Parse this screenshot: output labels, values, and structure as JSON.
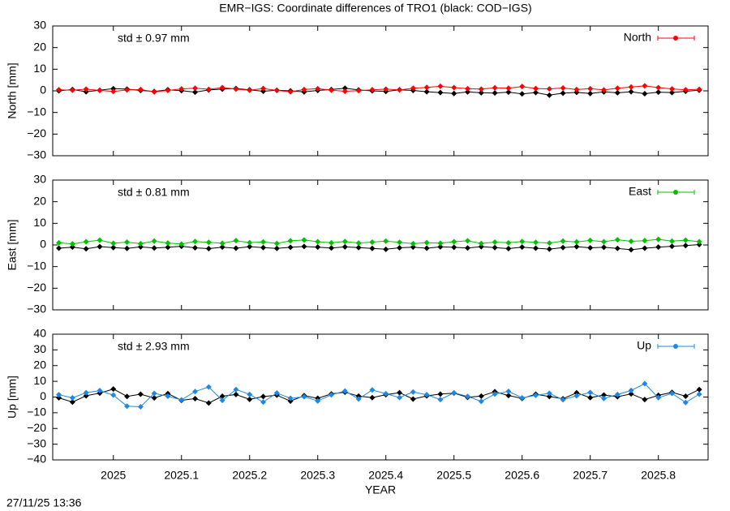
{
  "title": "EMR−IGS: Coordinate differences of TRO1 (black: COD−IGS)",
  "timestamp": "27/11/25 13:36",
  "chart_data": [
    {
      "type": "line",
      "ylabel": "North [mm]",
      "annotation": "std ± 0.97 mm",
      "legend": "top-right",
      "x": [
        2024.92,
        2024.94,
        2024.96,
        2024.98,
        2025,
        2025.02,
        2025.04,
        2025.06,
        2025.08,
        2025.1,
        2025.12,
        2025.14,
        2025.16,
        2025.18,
        2025.2,
        2025.22,
        2025.24,
        2025.26,
        2025.28,
        2025.3,
        2025.32,
        2025.34,
        2025.36,
        2025.38,
        2025.4,
        2025.42,
        2025.44,
        2025.46,
        2025.48,
        2025.5,
        2025.52,
        2025.54,
        2025.56,
        2025.58,
        2025.6,
        2025.62,
        2025.64,
        2025.66,
        2025.68,
        2025.7,
        2025.72,
        2025.74,
        2025.76,
        2025.78,
        2025.8,
        2025.82,
        2025.84,
        2025.86
      ],
      "xlim": [
        2024.911,
        2025.873
      ],
      "ylim": [
        -30,
        30
      ],
      "yticks": [
        {
          "value": -30,
          "label": "−30"
        },
        {
          "value": -20,
          "label": "−20"
        },
        {
          "value": -10,
          "label": "−10"
        },
        0,
        10,
        20,
        30
      ],
      "series": [
        {
          "color": "#000000",
          "values": [
            0,
            0.6,
            -0.4,
            0.3,
            1.0,
            0.8,
            0.2,
            -0.3,
            0.5,
            0.1,
            -0.6,
            0.4,
            0.8,
            1.1,
            0.5,
            -0.2,
            0.3,
            0.0,
            -0.5,
            0.2,
            0.6,
            1.2,
            0.4,
            0.0,
            -0.3,
            0.5,
            0.2,
            -0.4,
            -0.8,
            -1.2,
            -0.5,
            -0.9,
            -1.0,
            -0.6,
            -1.4,
            -0.8,
            -2.0,
            -1.1,
            -0.7,
            -1.2,
            -0.5,
            -0.9,
            -0.4,
            -1.3,
            -0.6,
            -0.8,
            -0.2,
            0.3
          ]
        },
        {
          "name": "North",
          "color": "#ff0000",
          "values": [
            0.5,
            0.3,
            0.8,
            0.2,
            -0.3,
            0.4,
            0.6,
            -0.5,
            0.2,
            0.9,
            1.2,
            0.7,
            1.5,
            0.8,
            0.3,
            1.1,
            0.2,
            -0.4,
            0.6,
            1.0,
            0.3,
            -0.2,
            0.1,
            0.5,
            0.8,
            0.4,
            1.2,
            1.6,
            2.1,
            1.5,
            1.0,
            0.8,
            1.4,
            1.2,
            2.0,
            1.1,
            0.9,
            1.3,
            0.6,
            1.0,
            0.4,
            1.2,
            1.8,
            2.3,
            1.5,
            0.9,
            0.5,
            0.7
          ]
        }
      ]
    },
    {
      "type": "line",
      "ylabel": "East [mm]",
      "annotation": "std ± 0.81 mm",
      "legend": "top-right",
      "x": [
        2024.92,
        2024.94,
        2024.96,
        2024.98,
        2025,
        2025.02,
        2025.04,
        2025.06,
        2025.08,
        2025.1,
        2025.12,
        2025.14,
        2025.16,
        2025.18,
        2025.2,
        2025.22,
        2025.24,
        2025.26,
        2025.28,
        2025.3,
        2025.32,
        2025.34,
        2025.36,
        2025.38,
        2025.4,
        2025.42,
        2025.44,
        2025.46,
        2025.48,
        2025.5,
        2025.52,
        2025.54,
        2025.56,
        2025.58,
        2025.6,
        2025.62,
        2025.64,
        2025.66,
        2025.68,
        2025.7,
        2025.72,
        2025.74,
        2025.76,
        2025.78,
        2025.8,
        2025.82,
        2025.84,
        2025.86
      ],
      "xlim": [
        2024.911,
        2025.873
      ],
      "ylim": [
        -30,
        30
      ],
      "yticks": [
        {
          "value": -30,
          "label": "−30"
        },
        {
          "value": -20,
          "label": "−20"
        },
        {
          "value": -10,
          "label": "−10"
        },
        0,
        10,
        20,
        30
      ],
      "series": [
        {
          "color": "#000000",
          "values": [
            -1.5,
            -1.0,
            -1.8,
            -0.8,
            -1.2,
            -1.6,
            -0.9,
            -1.4,
            -1.1,
            -0.6,
            -1.3,
            -1.7,
            -1.0,
            -1.5,
            -0.8,
            -1.2,
            -1.6,
            -1.1,
            -0.7,
            -1.0,
            -1.4,
            -0.9,
            -1.2,
            -1.6,
            -2.0,
            -1.3,
            -1.0,
            -1.5,
            -0.9,
            -1.1,
            -1.4,
            -0.8,
            -1.2,
            -1.7,
            -1.0,
            -1.5,
            -1.9,
            -1.2,
            -0.8,
            -1.3,
            -1.1,
            -1.6,
            -2.2,
            -1.5,
            -1.0,
            -0.6,
            -0.3,
            0.2
          ]
        },
        {
          "name": "East",
          "color": "#00c000",
          "values": [
            1.0,
            0.5,
            1.5,
            2.2,
            0.8,
            1.3,
            0.6,
            1.8,
            0.9,
            0.4,
            1.6,
            1.2,
            0.8,
            2.0,
            1.1,
            1.4,
            0.7,
            1.9,
            2.3,
            1.5,
            1.0,
            1.6,
            0.9,
            1.3,
            1.8,
            1.2,
            0.6,
            1.1,
            0.8,
            1.5,
            1.9,
            0.7,
            1.3,
            1.0,
            1.6,
            1.2,
            0.9,
            1.8,
            1.4,
            2.1,
            1.5,
            2.4,
            1.7,
            2.0,
            2.6,
            1.8,
            2.2,
            1.5
          ]
        }
      ]
    },
    {
      "type": "line",
      "ylabel": "Up [mm]",
      "xlabel": "YEAR",
      "annotation": "std ± 2.93 mm",
      "legend": "top-right",
      "x": [
        2024.92,
        2024.94,
        2024.96,
        2024.98,
        2025,
        2025.02,
        2025.04,
        2025.06,
        2025.08,
        2025.1,
        2025.12,
        2025.14,
        2025.16,
        2025.18,
        2025.2,
        2025.22,
        2025.24,
        2025.26,
        2025.28,
        2025.3,
        2025.32,
        2025.34,
        2025.36,
        2025.38,
        2025.4,
        2025.42,
        2025.44,
        2025.46,
        2025.48,
        2025.5,
        2025.52,
        2025.54,
        2025.56,
        2025.58,
        2025.6,
        2025.62,
        2025.64,
        2025.66,
        2025.68,
        2025.7,
        2025.72,
        2025.74,
        2025.76,
        2025.78,
        2025.8,
        2025.82,
        2025.84,
        2025.86
      ],
      "xlim": [
        2024.911,
        2025.873
      ],
      "xticks": [
        2025,
        2025.1,
        2025.2,
        2025.3,
        2025.4,
        2025.5,
        2025.6,
        2025.7,
        2025.8
      ],
      "ylim": [
        -40,
        40
      ],
      "yticks": [
        {
          "value": -40,
          "label": "−40"
        },
        {
          "value": -30,
          "label": "−30"
        },
        {
          "value": -20,
          "label": "−20"
        },
        {
          "value": -10,
          "label": "−10"
        },
        0,
        10,
        20,
        30,
        40
      ],
      "series": [
        {
          "color": "#000000",
          "values": [
            -0.5,
            -3.2,
            0.8,
            2.5,
            5.1,
            0.4,
            1.8,
            -0.6,
            2.2,
            -2.1,
            -1.0,
            -3.8,
            0.5,
            1.6,
            -1.5,
            0.3,
            1.2,
            -2.6,
            0.9,
            -0.8,
            2.0,
            3.1,
            0.6,
            -0.4,
            1.5,
            2.8,
            -1.3,
            0.7,
            1.9,
            2.5,
            -0.2,
            0.6,
            3.4,
            1.0,
            -0.9,
            1.8,
            0.3,
            -1.1,
            2.7,
            -0.4,
            1.3,
            0.2,
            2.0,
            -1.6,
            1.1,
            3.0,
            0.5,
            4.8
          ]
        },
        {
          "name": "Up",
          "color": "#1e88e5",
          "values": [
            1.5,
            -0.5,
            2.8,
            4.1,
            1.2,
            -5.8,
            -6.2,
            2.3,
            0.5,
            -1.8,
            3.5,
            6.4,
            -2.1,
            4.8,
            1.7,
            -3.2,
            2.6,
            -0.8,
            0.2,
            -2.5,
            1.4,
            3.8,
            -1.2,
            4.5,
            2.1,
            -0.3,
            3.2,
            1.5,
            -1.6,
            2.7,
            0.4,
            -2.8,
            1.9,
            3.6,
            -0.5,
            1.1,
            2.4,
            -1.7,
            0.8,
            2.9,
            -0.9,
            1.6,
            4.2,
            8.5,
            -0.4,
            2.3,
            -3.5,
            1.8
          ]
        }
      ]
    }
  ]
}
